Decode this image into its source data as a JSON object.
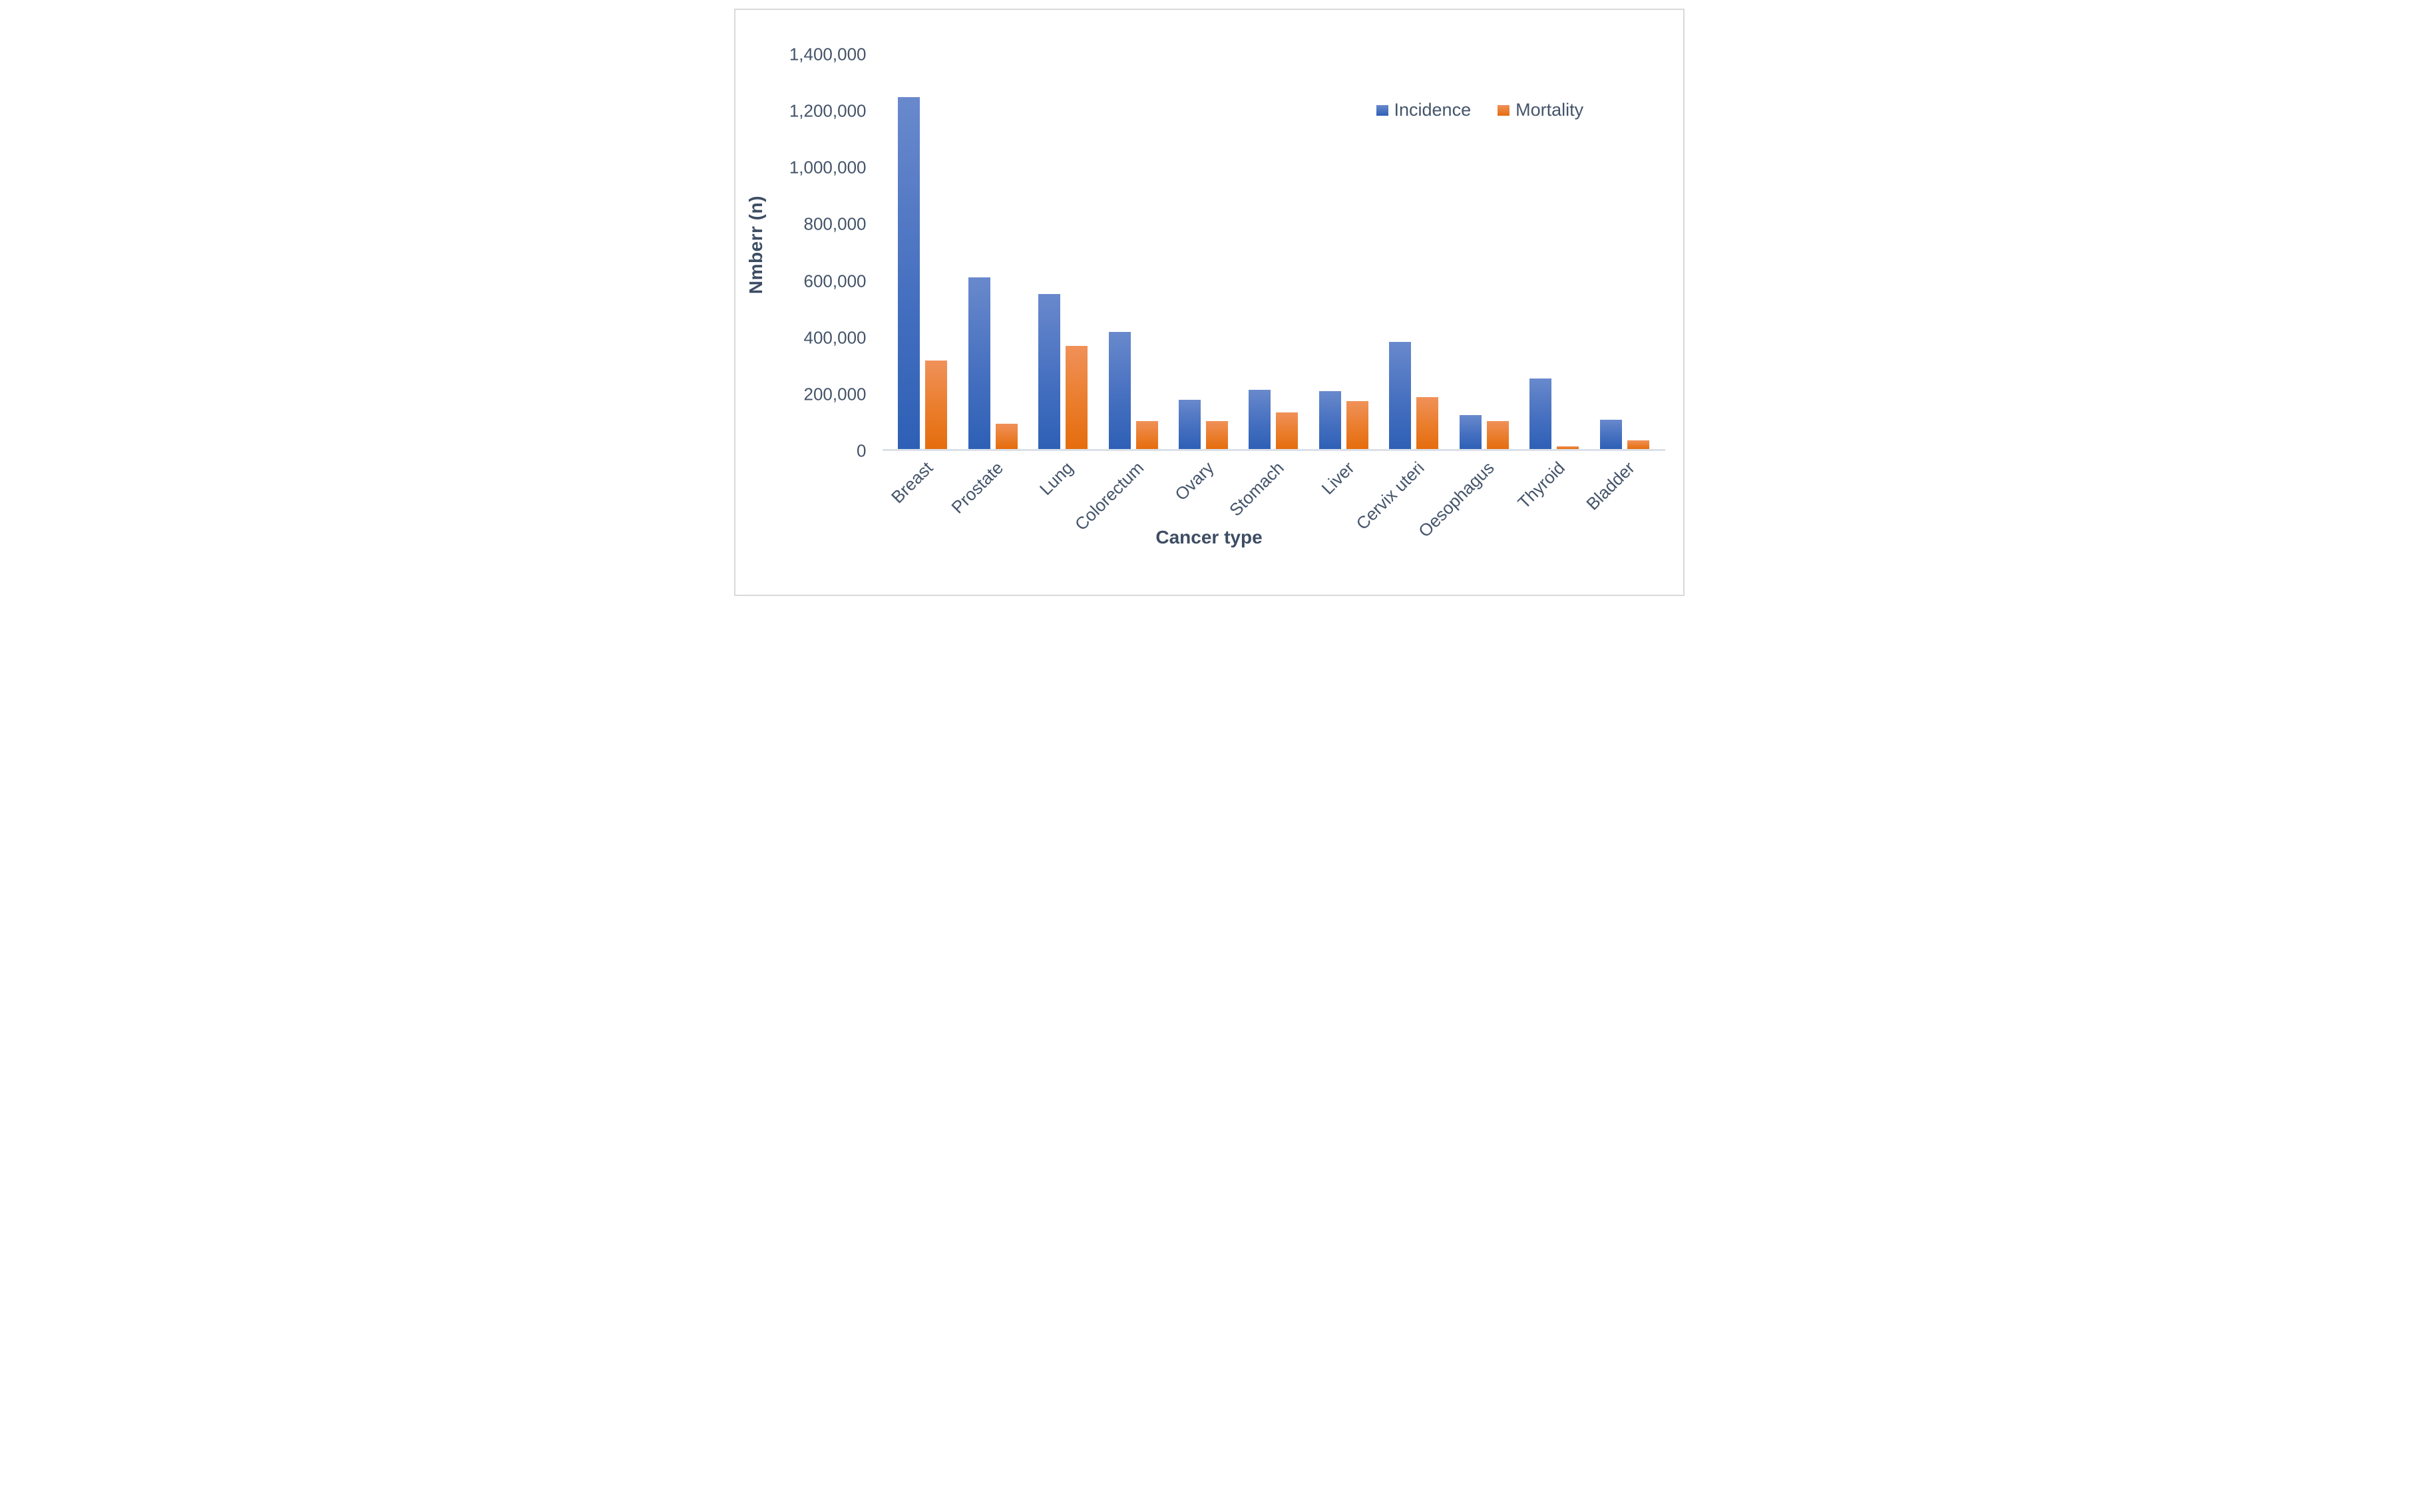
{
  "chart_data": {
    "type": "bar",
    "title": "",
    "xlabel": "Cancer type",
    "ylabel": "Nmberr (n)",
    "categories": [
      "Breast",
      "Prostate",
      "Lung",
      "Colorectum",
      "Ovary",
      "Stomach",
      "Liver",
      "Cervix uteri",
      "Oesophagus",
      "Thyroid",
      "Bladder"
    ],
    "series": [
      {
        "name": "Incidence",
        "color_top": "#6989cc",
        "color_bottom": "#2e60b6",
        "values": [
          1250000,
          610000,
          550000,
          415000,
          175000,
          210000,
          205000,
          380000,
          120000,
          250000,
          105000
        ]
      },
      {
        "name": "Mortality",
        "color_top": "#f09159",
        "color_bottom": "#e56d0d",
        "values": [
          315000,
          90000,
          365000,
          100000,
          100000,
          130000,
          170000,
          185000,
          100000,
          10000,
          30000
        ]
      }
    ],
    "ylim": [
      0,
      1400000
    ],
    "ytick_step": 200000,
    "ytick_labels": [
      "0",
      "200,000",
      "400,000",
      "600,000",
      "800,000",
      "1,000,000",
      "1,200,000",
      "1,400,000"
    ],
    "legend_position": "top-right",
    "grid": "off",
    "axis_line_color": "#dbe0e9",
    "text_color": "#44546a"
  }
}
